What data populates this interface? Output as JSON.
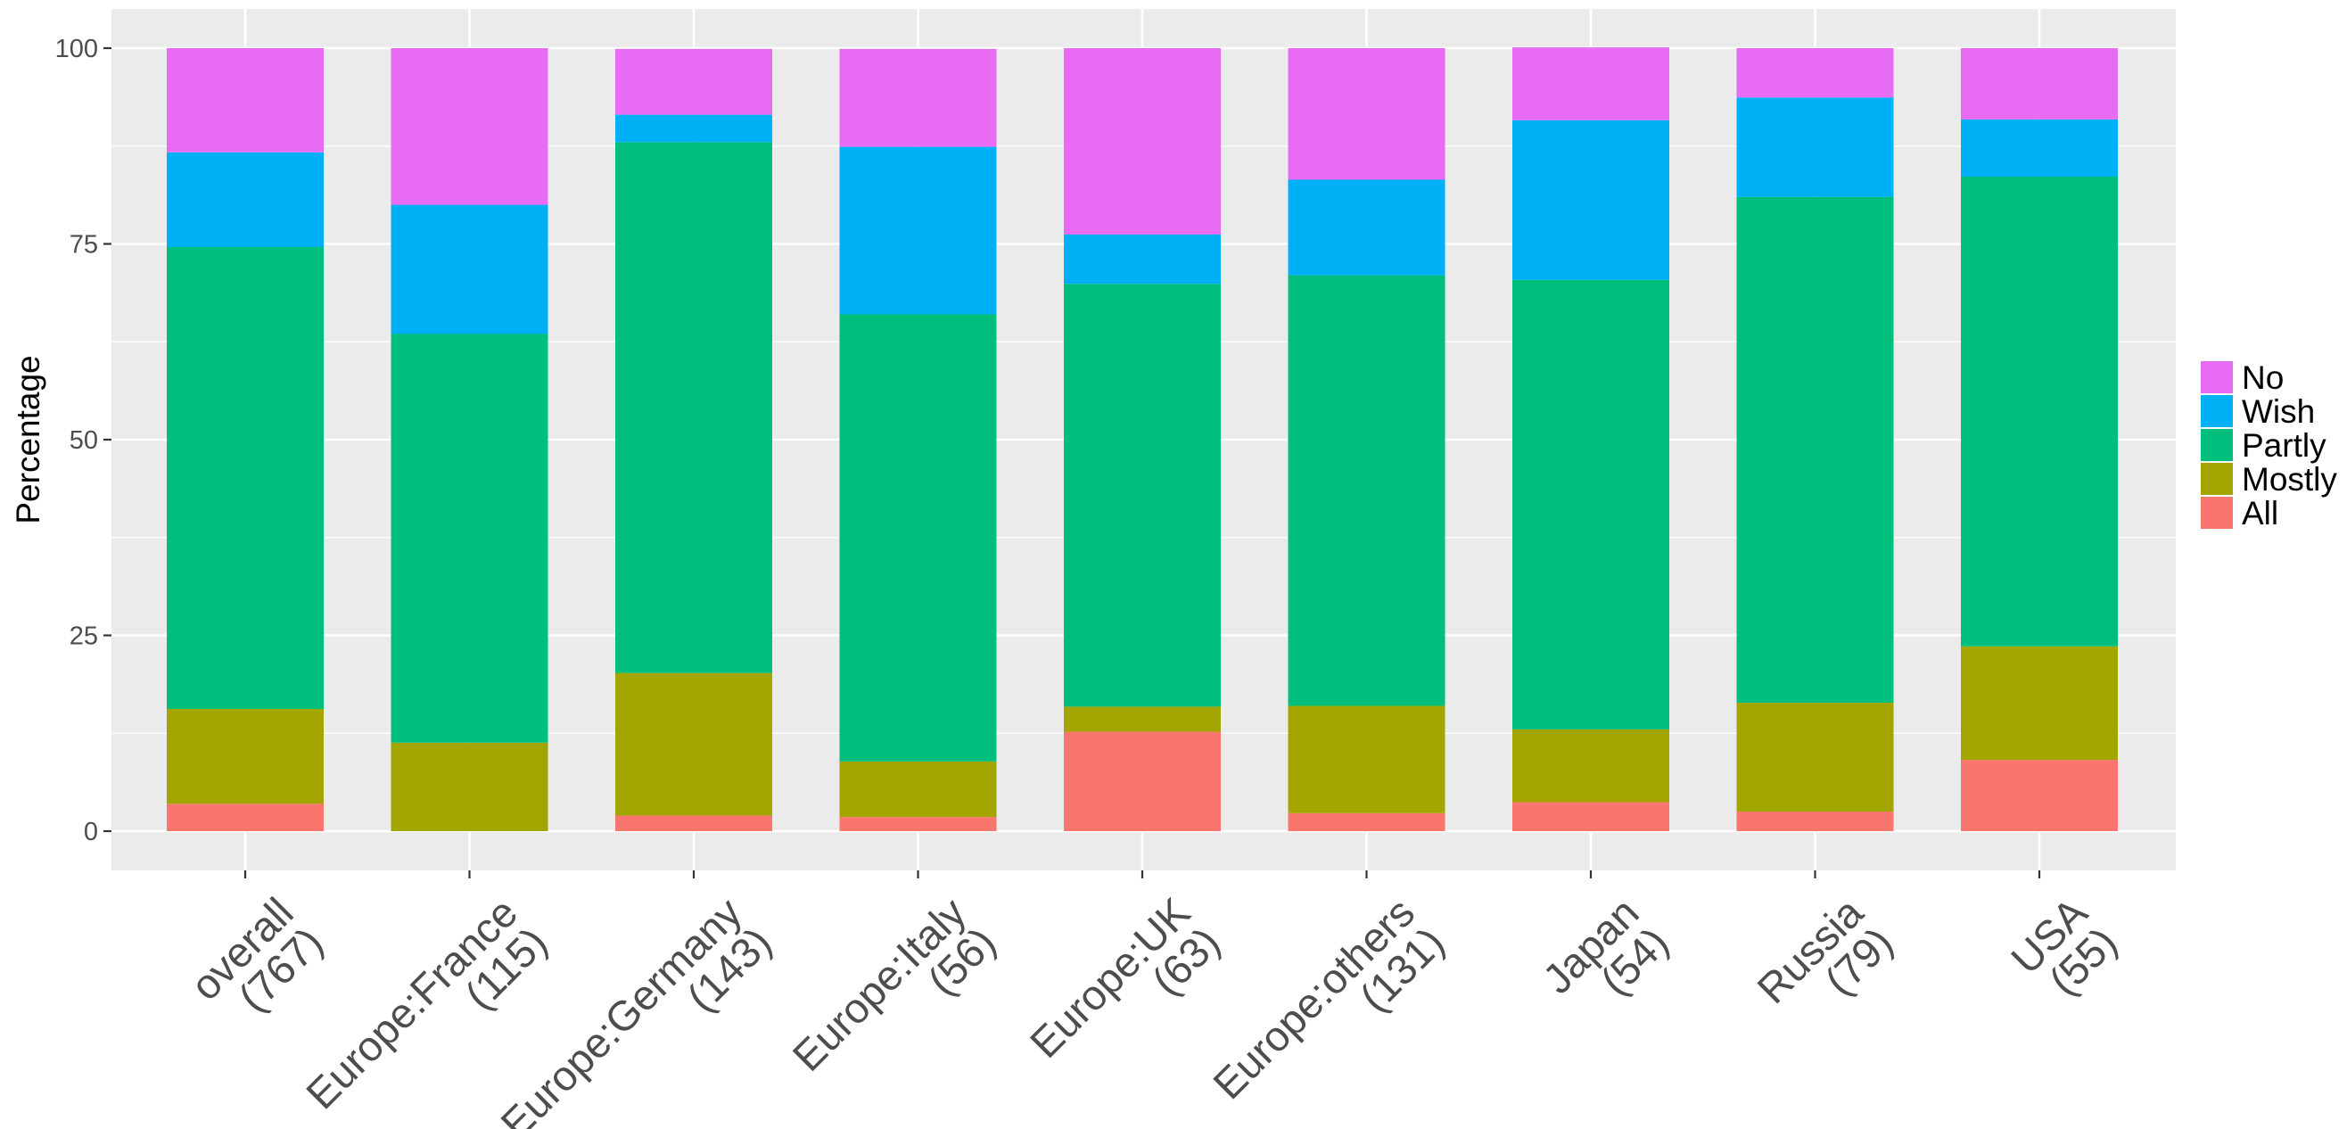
{
  "chart_data": {
    "type": "bar",
    "stacked": true,
    "title": "",
    "xlabel": "",
    "ylabel": "Percentage",
    "ylim": [
      0,
      100
    ],
    "yticks": [
      0,
      25,
      50,
      75,
      100
    ],
    "grid": true,
    "legend_position": "right",
    "categories": [
      [
        "overall",
        "(767)"
      ],
      [
        "Europe:France",
        "(115)"
      ],
      [
        "Europe:Germany",
        "(143)"
      ],
      [
        "Europe:Italy",
        "(56)"
      ],
      [
        "Europe:UK",
        "(63)"
      ],
      [
        "Europe:others",
        "(131)"
      ],
      [
        "Japan",
        "(54)"
      ],
      [
        "Russia",
        "(79)"
      ],
      [
        "USA",
        "(55)"
      ]
    ],
    "legend_order": [
      "No",
      "Wish",
      "Partly",
      "Mostly",
      "All"
    ],
    "series": [
      {
        "name": "All",
        "color": "#F8766D",
        "values": [
          3.5,
          0,
          2.0,
          1.8,
          12.7,
          2.3,
          3.7,
          2.5,
          9.1
        ]
      },
      {
        "name": "Mostly",
        "color": "#A3A500",
        "values": [
          12.1,
          11.3,
          18.2,
          7.1,
          3.2,
          13.7,
          9.3,
          13.9,
          14.5
        ]
      },
      {
        "name": "Partly",
        "color": "#00BF7D",
        "values": [
          59.0,
          52.2,
          67.8,
          57.1,
          54.0,
          55.0,
          57.4,
          64.6,
          60.0
        ]
      },
      {
        "name": "Wish",
        "color": "#00B0F6",
        "values": [
          12.1,
          16.5,
          3.5,
          21.4,
          6.3,
          12.2,
          20.4,
          12.7,
          7.3
        ]
      },
      {
        "name": "No",
        "color": "#E76BF3",
        "values": [
          13.3,
          20.0,
          8.4,
          12.5,
          23.8,
          16.8,
          9.3,
          6.3,
          9.1
        ]
      }
    ],
    "panel_background": "#EBEBEB",
    "gridline_color": "#FFFFFF"
  }
}
